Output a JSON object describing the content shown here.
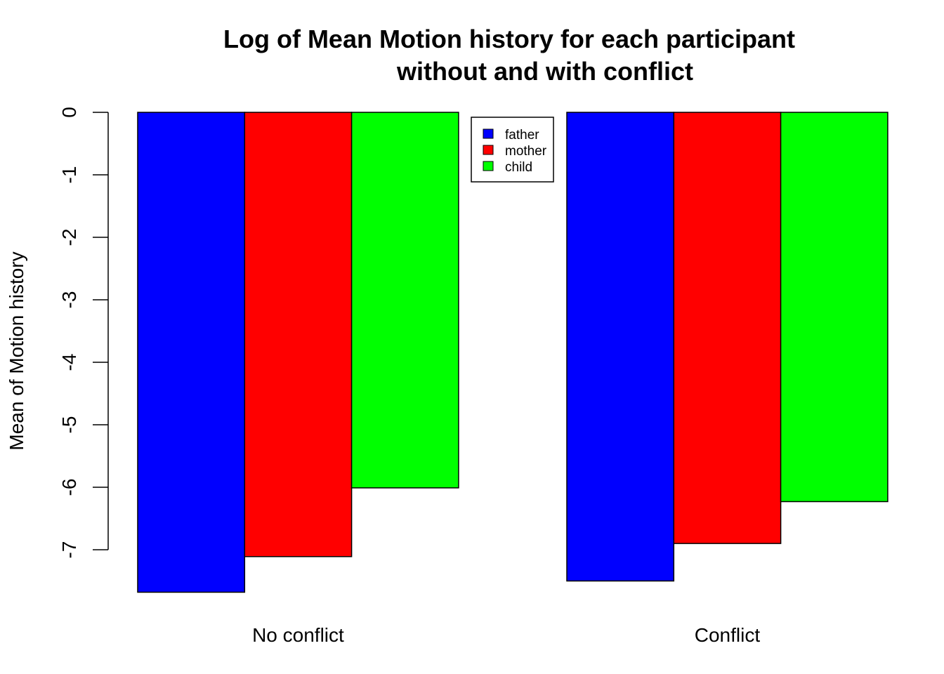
{
  "chart_data": {
    "type": "bar",
    "title": "Log of Mean Motion history for each participant",
    "subtitle": "without and with conflict",
    "xlabel": "",
    "ylabel": "Mean of Motion history",
    "categories": [
      "No conflict",
      "Conflict"
    ],
    "series": [
      {
        "name": "father",
        "color": "#0000ff",
        "values": [
          -7.68,
          -7.5
        ]
      },
      {
        "name": "mother",
        "color": "#ff0000",
        "values": [
          -7.11,
          -6.9
        ]
      },
      {
        "name": "child",
        "color": "#00ff00",
        "values": [
          -6.01,
          -6.23
        ]
      }
    ],
    "ylim": [
      -7.7,
      0
    ],
    "yticks": [
      0,
      -1,
      -2,
      -3,
      -4,
      -5,
      -6,
      -7
    ],
    "ytick_labels": [
      "0",
      "-1",
      "-2",
      "-3",
      "-4",
      "-5",
      "-6",
      "-7"
    ],
    "grid": false,
    "legend_position": "top-center"
  }
}
